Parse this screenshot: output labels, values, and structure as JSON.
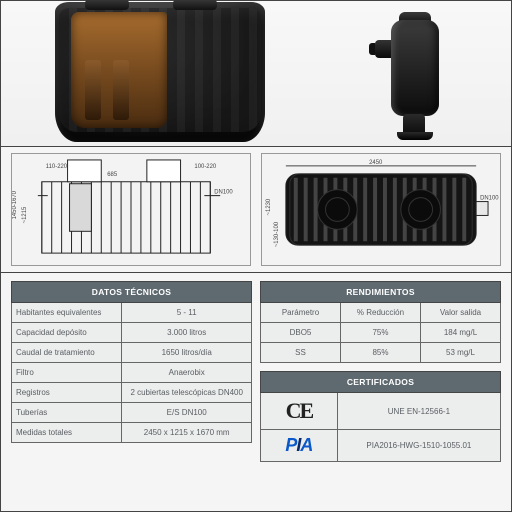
{
  "headers": {
    "datos": "DATOS TÉCNICOS",
    "rend": "RENDIMIENTOS",
    "cert": "CERTIFICADOS"
  },
  "datos_rows": [
    {
      "label": "Habitantes equivalentes",
      "value": "5 - 11"
    },
    {
      "label": "Capacidad depósito",
      "value": "3.000 litros"
    },
    {
      "label": "Caudal de tratamiento",
      "value": "1650 litros/día"
    },
    {
      "label": "Filtro",
      "value": "Anaerobix"
    },
    {
      "label": "Registros",
      "value": "2 cubiertas telescópicas DN400"
    },
    {
      "label": "Tuberías",
      "value": "E/S DN100"
    },
    {
      "label": "Medidas totales",
      "value": "2450 x 1215 x 1670 mm"
    }
  ],
  "rend_head": {
    "c1": "Parámetro",
    "c2": "% Reducción",
    "c3": "Valor salida"
  },
  "rend_rows": [
    {
      "c1": "DBO5",
      "c2": "75%",
      "c3": "184 mg/L"
    },
    {
      "c1": "SS",
      "c2": "85%",
      "c3": "53 mg/L"
    }
  ],
  "cert_rows": [
    {
      "logo": "ce",
      "text": "UNE EN-12566-1"
    },
    {
      "logo": "pia",
      "text": "PIA2016-HWG-1510-1055.01"
    }
  ],
  "dims": {
    "side_h1": "1450-1670",
    "side_h2": "~1215",
    "side_off": "110-220",
    "side_w": "685",
    "side_dn": "DN100",
    "side_off2": "100-220",
    "top_w": "2450",
    "top_h": "~1230",
    "top_off": "~130-100",
    "top_dn": "DN100"
  }
}
